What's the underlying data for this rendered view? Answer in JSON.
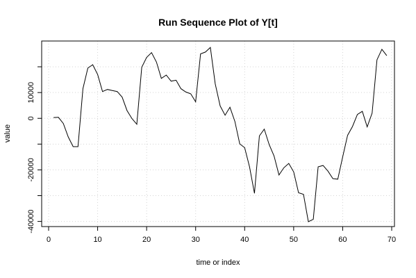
{
  "chart_data": {
    "type": "line",
    "title": "Run Sequence Plot of Y[t]",
    "xlabel": "time or index",
    "ylabel": "value",
    "xlim": [
      0,
      70
    ],
    "ylim": [
      -42000,
      30000
    ],
    "xticks": [
      0,
      10,
      20,
      30,
      40,
      50,
      60,
      70
    ],
    "xtick_labels": [
      "0",
      "10",
      "20",
      "30",
      "40",
      "50",
      "60",
      "70"
    ],
    "yticks": [
      -40000,
      -30000,
      -20000,
      -10000,
      0,
      10000,
      20000
    ],
    "ytick_labels": [
      "-40000",
      "",
      "-20000",
      "",
      "0",
      "10000",
      ""
    ],
    "grid": true,
    "series": [
      {
        "x": [
          1,
          2,
          3,
          4,
          5,
          6,
          7,
          8,
          9,
          10,
          11,
          12,
          13,
          14,
          15,
          16,
          17,
          18,
          19,
          20,
          21,
          22,
          23,
          24,
          25,
          26,
          27,
          28,
          29,
          30,
          31,
          32,
          33,
          34,
          35,
          36,
          37,
          38,
          39,
          40,
          41,
          42,
          43,
          44,
          45,
          46,
          47,
          48,
          49,
          50,
          51,
          52,
          53,
          54,
          55,
          56,
          57,
          58,
          59,
          60,
          61,
          62,
          63,
          64,
          65,
          66,
          67,
          68,
          69
        ],
        "values": [
          300,
          400,
          -2000,
          -7200,
          -11000,
          -11000,
          11500,
          19500,
          20800,
          17000,
          10400,
          11200,
          10800,
          10400,
          8200,
          3000,
          -100,
          -2300,
          19800,
          23600,
          25500,
          21800,
          15500,
          16800,
          14400,
          14800,
          11500,
          10200,
          9500,
          6400,
          25000,
          25700,
          27500,
          13400,
          4800,
          1200,
          4300,
          -1200,
          -9900,
          -11400,
          -18800,
          -29100,
          -6800,
          -4200,
          -10200,
          -14600,
          -22000,
          -19200,
          -17500,
          -20800,
          -28900,
          -29500,
          -40100,
          -39200,
          -18800,
          -18300,
          -20500,
          -23400,
          -23600,
          -15000,
          -6600,
          -3200,
          1500,
          2700,
          -3300,
          2000,
          22700,
          26800,
          24300
        ]
      }
    ]
  }
}
